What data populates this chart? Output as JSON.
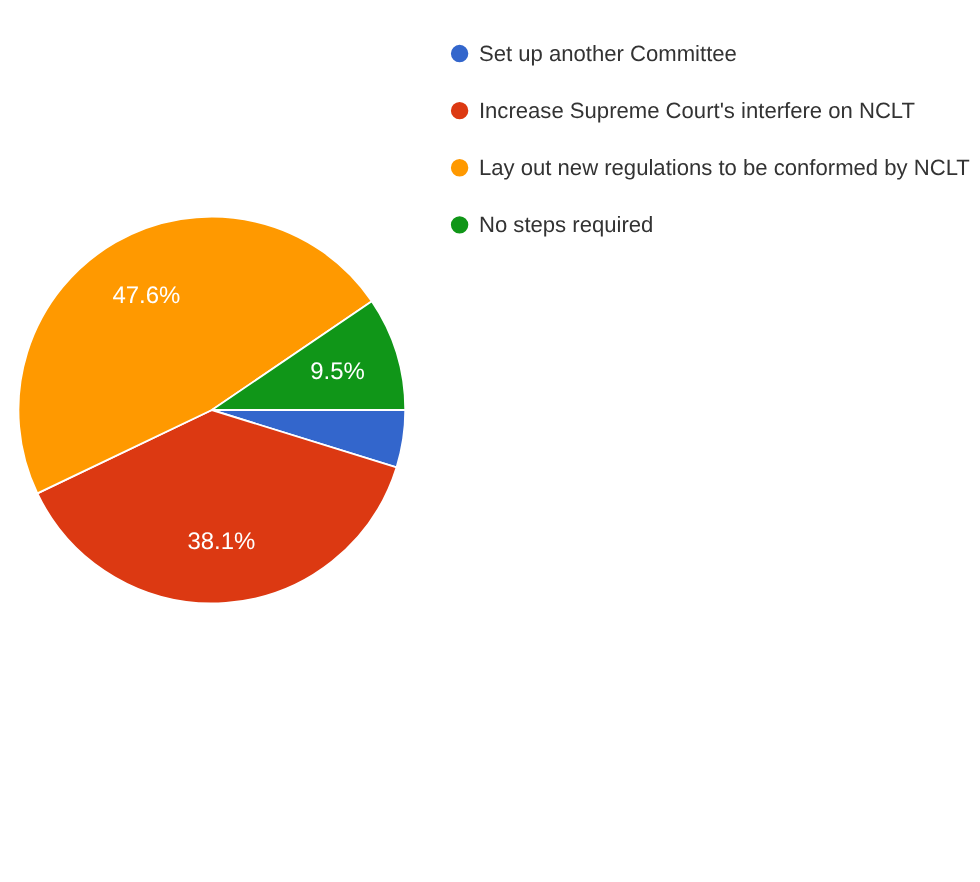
{
  "chart_data": {
    "type": "pie",
    "categories": [
      "Set up another Committee",
      "Increase Supreme Court's interfere on NCLT",
      "Lay out new regulations to be conformed by NCLT",
      "No steps required"
    ],
    "values": [
      4.8,
      38.1,
      47.6,
      9.5
    ],
    "colors": [
      "#3366cc",
      "#dc3912",
      "#ff9900",
      "#109618"
    ],
    "value_labels": [
      null,
      "38.1%",
      "47.6%",
      "9.5%"
    ],
    "legend": "right"
  }
}
